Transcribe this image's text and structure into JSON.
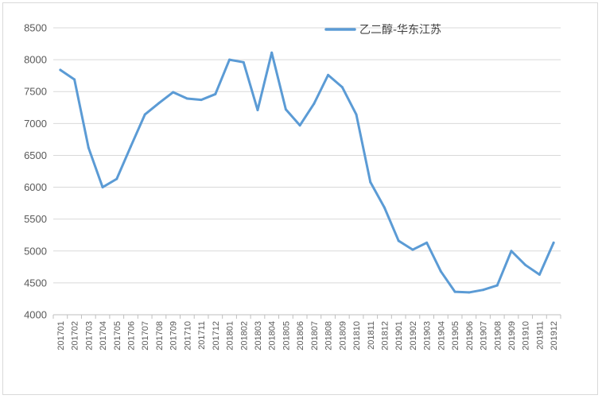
{
  "chart_data": {
    "type": "line",
    "title": "",
    "xlabel": "",
    "ylabel": "",
    "ylim": [
      4000,
      8500
    ],
    "yticks": [
      4000,
      4500,
      5000,
      5500,
      6000,
      6500,
      7000,
      7500,
      8000,
      8500
    ],
    "grid": true,
    "legend_position": "top-right",
    "x": [
      "201701",
      "201702",
      "201703",
      "201704",
      "201705",
      "201706",
      "201707",
      "201708",
      "201709",
      "201710",
      "201711",
      "201712",
      "201801",
      "201802",
      "201803",
      "201804",
      "201805",
      "201806",
      "201807",
      "201808",
      "201809",
      "201810",
      "201811",
      "201812",
      "201901",
      "201902",
      "201903",
      "201904",
      "201905",
      "201906",
      "201907",
      "201908",
      "201909",
      "201910",
      "201911",
      "201912"
    ],
    "series": [
      {
        "name": "乙二醇-华东江苏",
        "color": "#5B9BD5",
        "values": [
          7840,
          7690,
          6620,
          6000,
          6130,
          6640,
          7140,
          7320,
          7490,
          7390,
          7370,
          7460,
          8000,
          7960,
          7210,
          8110,
          7220,
          6970,
          7310,
          7760,
          7570,
          7140,
          6080,
          5680,
          5160,
          5020,
          5130,
          4680,
          4360,
          4350,
          4390,
          4460,
          5000,
          4780,
          4630,
          5130
        ]
      }
    ]
  }
}
